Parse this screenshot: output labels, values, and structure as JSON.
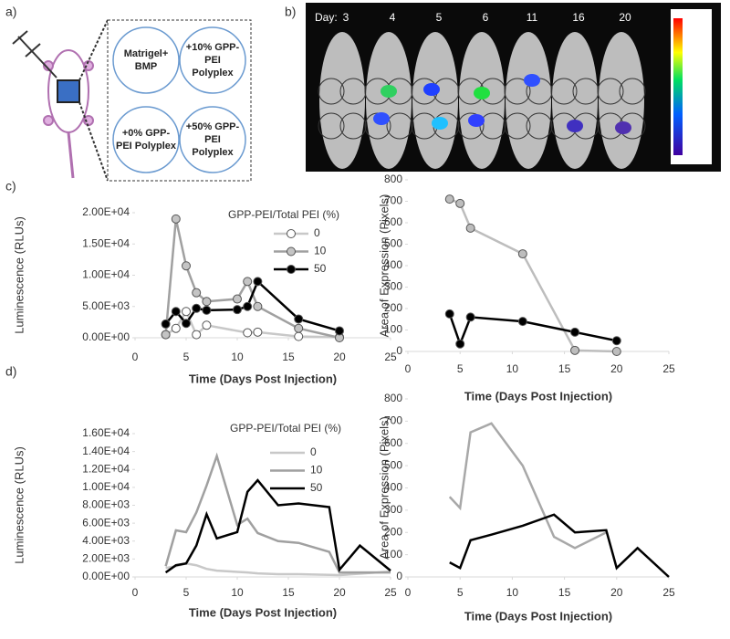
{
  "panels": {
    "a": "a)",
    "b": "b)",
    "c": "c)",
    "d": "d)"
  },
  "diagram": {
    "wells": [
      [
        "Matrigel+",
        "BMP"
      ],
      [
        "+10% GPP-",
        "PEI",
        "Polyplex"
      ],
      [
        "+0% GPP-",
        "PEI Polyplex"
      ],
      [
        "+50% GPP-",
        "PEI",
        "Polyplex"
      ]
    ]
  },
  "imaging": {
    "day_label": "Day:",
    "days": [
      3,
      4,
      5,
      6,
      11,
      16,
      20
    ]
  },
  "chart_data": [
    {
      "type": "line",
      "legend_title": "GPP-PEI/Total PEI (%)",
      "x_label": "Time (Days Post Injection)",
      "y_label": "Luminescence (RLUs)",
      "xlim": [
        0,
        25
      ],
      "xticks": [
        0,
        5,
        10,
        15,
        20,
        25
      ],
      "ylim": [
        0,
        20000
      ],
      "yticks": [
        {
          "value": 0,
          "label": "0.00E+00"
        },
        {
          "value": 5000,
          "label": "5.00E+03"
        },
        {
          "value": 10000,
          "label": "1.00E+04"
        },
        {
          "value": 15000,
          "label": "1.50E+04"
        },
        {
          "value": 20000,
          "label": "2.00E+04"
        }
      ],
      "series": [
        {
          "name": "0",
          "color": "#c8c8c8",
          "marker_fill": "#ffffff",
          "x": [
            3,
            4,
            5,
            6,
            7,
            11,
            12,
            16,
            20
          ],
          "values": [
            500,
            1500,
            4200,
            500,
            2000,
            800,
            900,
            200,
            100
          ]
        },
        {
          "name": "10",
          "color": "#a0a0a0",
          "marker_fill": "#c4c4c4",
          "x": [
            3,
            4,
            5,
            6,
            7,
            10,
            11,
            12,
            16,
            20
          ],
          "values": [
            500,
            19000,
            11500,
            7200,
            5800,
            6200,
            9000,
            5000,
            1500,
            0
          ]
        },
        {
          "name": "50",
          "color": "#000000",
          "marker_fill": "#000000",
          "x": [
            3,
            4,
            5,
            6,
            7,
            10,
            11,
            12,
            16,
            20
          ],
          "values": [
            2200,
            4200,
            2300,
            4700,
            4400,
            4500,
            5000,
            9000,
            3000,
            1100
          ]
        }
      ]
    },
    {
      "type": "line",
      "x_label": "Time (Days Post Injection)",
      "y_label": "Area of Expression (Pixels)",
      "xlim": [
        0,
        25
      ],
      "xticks": [
        0,
        5,
        10,
        15,
        20,
        25
      ],
      "ylim": [
        0,
        800
      ],
      "yticks": [
        0,
        100,
        200,
        300,
        400,
        500,
        600,
        700,
        800
      ],
      "series": [
        {
          "color": "#bdbdbd",
          "marker_fill": "#bdbdbd",
          "x": [
            4,
            5,
            6,
            11,
            16,
            20
          ],
          "values": [
            710,
            690,
            575,
            455,
            5,
            0
          ]
        },
        {
          "color": "#000000",
          "marker_fill": "#000000",
          "x": [
            4,
            5,
            6,
            11,
            16,
            20
          ],
          "values": [
            175,
            35,
            160,
            140,
            90,
            50
          ]
        }
      ]
    },
    {
      "type": "line",
      "legend_title": "GPP-PEI/Total PEI (%)",
      "x_label": "Time (Days Post Injection)",
      "y_label": "Luminescence (RLUs)",
      "xlim": [
        0,
        25
      ],
      "xticks": [
        0,
        5,
        10,
        15,
        20,
        25
      ],
      "ylim": [
        0,
        16000
      ],
      "yticks": [
        {
          "value": 0,
          "label": "0.00E+00"
        },
        {
          "value": 2000,
          "label": "2.00E+03"
        },
        {
          "value": 4000,
          "label": "4.00E+03"
        },
        {
          "value": 6000,
          "label": "6.00E+03"
        },
        {
          "value": 8000,
          "label": "8.00E+03"
        },
        {
          "value": 10000,
          "label": "1.00E+04"
        },
        {
          "value": 12000,
          "label": "1.20E+04"
        },
        {
          "value": 14000,
          "label": "1.40E+04"
        },
        {
          "value": 16000,
          "label": "1.60E+04"
        }
      ],
      "series": [
        {
          "name": "0",
          "color": "#c8c8c8",
          "x": [
            3,
            4,
            5,
            6,
            7,
            8,
            11,
            12,
            14,
            16,
            20,
            25
          ],
          "values": [
            1000,
            1200,
            1500,
            1300,
            900,
            700,
            500,
            400,
            300,
            300,
            200,
            600
          ]
        },
        {
          "name": "10",
          "color": "#a0a0a0",
          "x": [
            3,
            4,
            5,
            6,
            7,
            8,
            10,
            11,
            12,
            14,
            16,
            19,
            20,
            25
          ],
          "values": [
            1200,
            5200,
            5000,
            7200,
            10200,
            13500,
            5800,
            6500,
            4900,
            4000,
            3800,
            2800,
            500,
            500
          ]
        },
        {
          "name": "50",
          "color": "#000000",
          "x": [
            3,
            4,
            5,
            6,
            7,
            8,
            10,
            11,
            12,
            14,
            16,
            19,
            20,
            22,
            25
          ],
          "values": [
            500,
            1300,
            1500,
            3500,
            7000,
            4300,
            5000,
            9500,
            10800,
            8000,
            8200,
            7800,
            800,
            3500,
            700
          ]
        }
      ]
    },
    {
      "type": "line",
      "x_label": "Time (Days Post Injection)",
      "y_label": "Area of Expression (Pixels)",
      "xlim": [
        0,
        25
      ],
      "xticks": [
        0,
        5,
        10,
        15,
        20,
        25
      ],
      "ylim": [
        0,
        800
      ],
      "yticks": [
        0,
        100,
        200,
        300,
        400,
        500,
        600,
        700,
        800
      ],
      "series": [
        {
          "color": "#a8a8a8",
          "x": [
            4,
            5,
            6,
            8,
            11,
            14,
            16,
            19
          ],
          "values": [
            360,
            310,
            650,
            690,
            500,
            180,
            130,
            200
          ]
        },
        {
          "color": "#000000",
          "x": [
            4,
            5,
            6,
            8,
            11,
            14,
            16,
            19,
            20,
            22,
            25
          ],
          "values": [
            65,
            40,
            165,
            190,
            230,
            280,
            200,
            210,
            40,
            130,
            0
          ]
        }
      ]
    }
  ]
}
